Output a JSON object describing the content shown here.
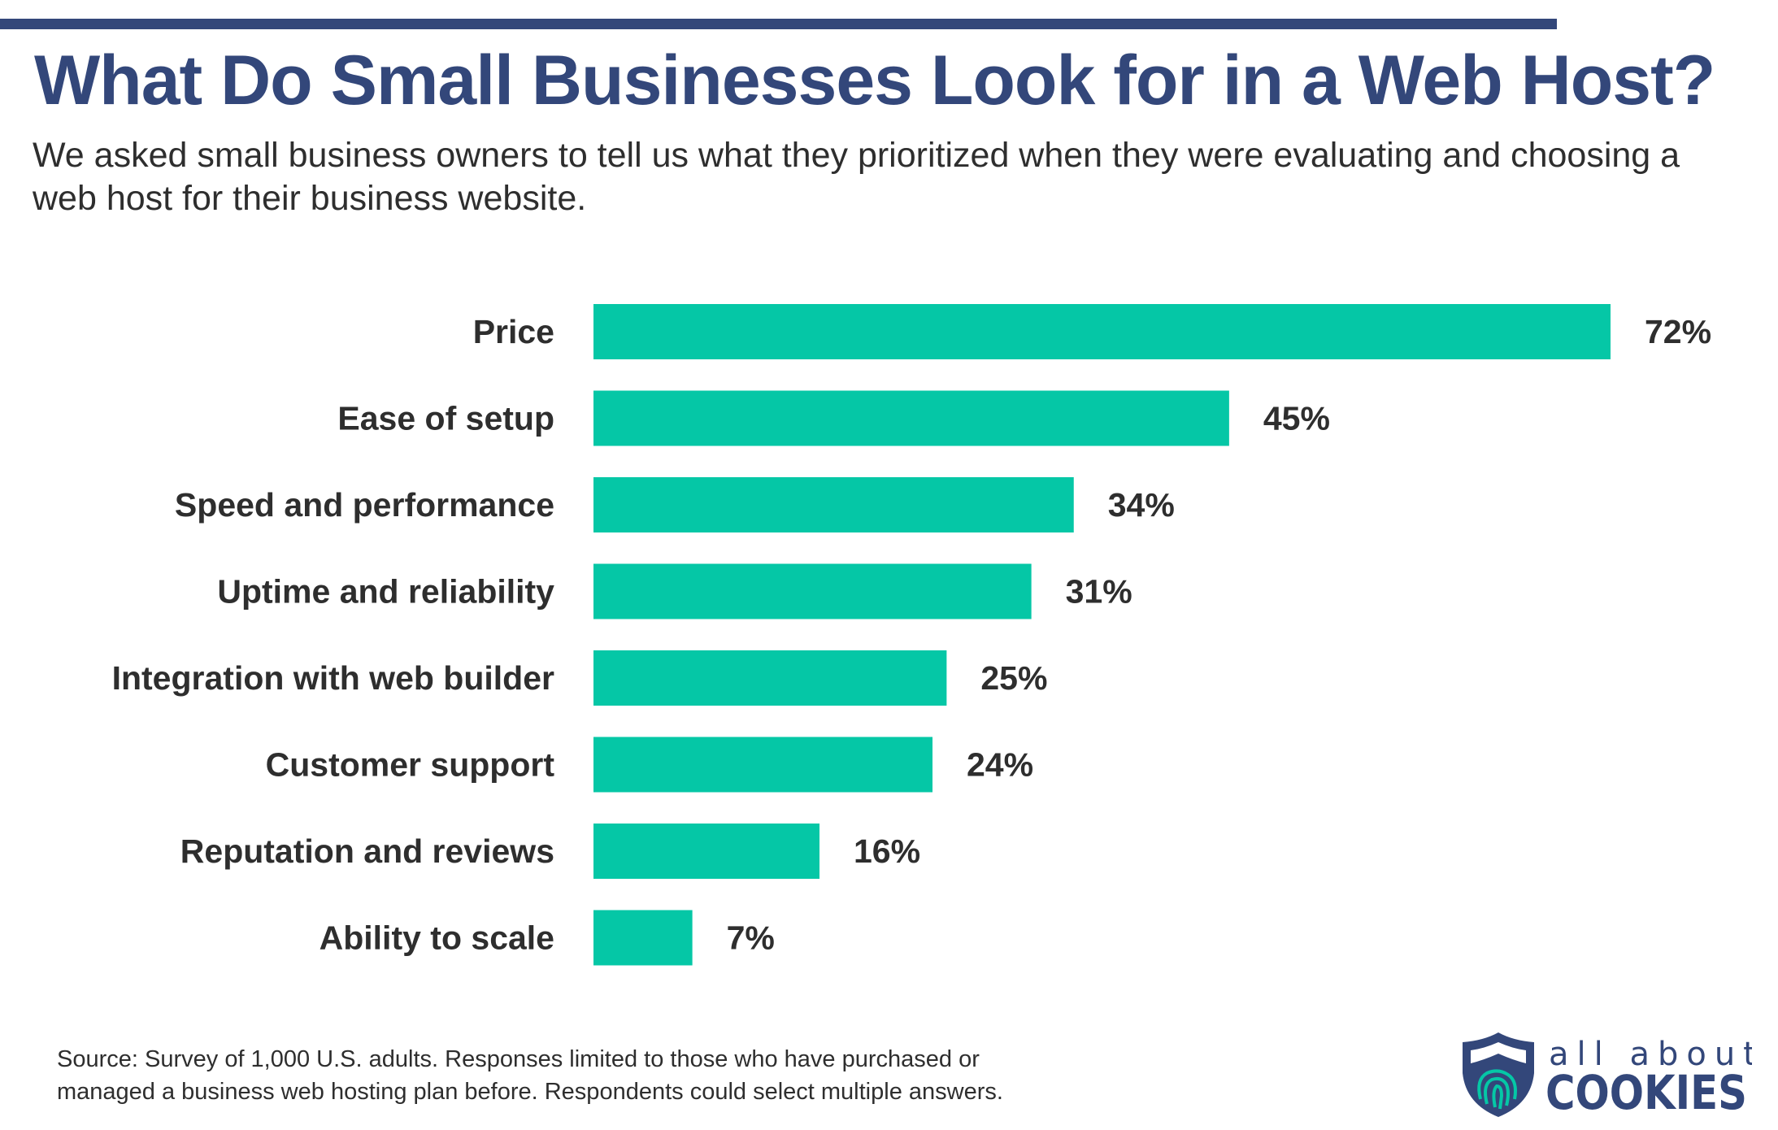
{
  "header": {
    "title": "What Do Small Businesses Look for in a Web Host?",
    "subtitle": "We asked small business owners to tell us what they prioritized when they were evaluating and choosing a web host for their business website."
  },
  "chart_data": {
    "type": "bar",
    "orientation": "horizontal",
    "title": "What Do Small Businesses Look for in a Web Host?",
    "categories": [
      "Price",
      "Ease of setup",
      "Speed and performance",
      "Uptime and reliability",
      "Integration with web builder",
      "Customer support",
      "Reputation and reviews",
      "Ability to scale"
    ],
    "values": [
      72,
      45,
      34,
      31,
      25,
      24,
      16,
      7
    ],
    "value_labels": [
      "72%",
      "45%",
      "34%",
      "31%",
      "25%",
      "24%",
      "16%",
      "7%"
    ],
    "unit": "%",
    "xlim": [
      0,
      72
    ],
    "grid": false,
    "bar_color": "#05c7a6"
  },
  "footer": {
    "source_line1": "Source: Survey of 1,000 U.S. adults. Responses limited to those who have purchased or",
    "source_line2": "managed a business web hosting plan before. Respondents could select multiple answers."
  },
  "logo": {
    "line1": "all about",
    "line2": "COOKIES"
  },
  "colors": {
    "navy": "#33477a",
    "teal": "#05c7a6",
    "text": "#2e2e2e"
  }
}
